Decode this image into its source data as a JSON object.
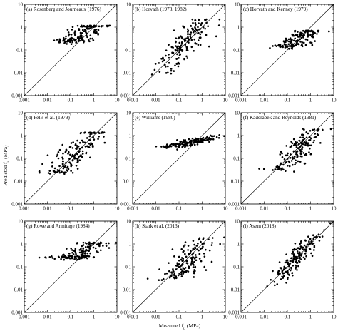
{
  "figure": {
    "ylabel": "Predicted f",
    "ylabel_sub": "u",
    "ylabel_unit": " (MPa)",
    "xlabel": "Measured f",
    "xlabel_sub": "u",
    "xlabel_unit": " (MPa)"
  },
  "chart_data": [
    {
      "type": "scatter",
      "title": "(a) Rosenberg and Journeaux (1976)",
      "x_ticks": [
        "0.001",
        "0.01",
        "0.1",
        "1",
        "10"
      ],
      "y_ticks": [
        "0.001",
        "0.01",
        "0.1",
        "1",
        "10"
      ],
      "xlim": [
        0.001,
        10
      ],
      "ylim": [
        0.001,
        10
      ],
      "log_x": true,
      "log_y": true,
      "reference_line": "1:1",
      "n_points": 150,
      "center_log": [
        -0.5,
        -0.35
      ],
      "spread": [
        0.55,
        0.28
      ],
      "slope": 0.55,
      "floor": -0.6,
      "cap": 0.02
    },
    {
      "type": "scatter",
      "title": "(b) Horvath (1978, 1982)",
      "x_ticks": [
        "0.001",
        "0.01",
        "0.1",
        "1",
        "10"
      ],
      "y_ticks": [
        "0.001",
        "0.01",
        "0.1",
        "1",
        "10"
      ],
      "xlim": [
        0.001,
        10
      ],
      "ylim": [
        0.001,
        10
      ],
      "log_x": true,
      "log_y": true,
      "reference_line": "1:1",
      "n_points": 160,
      "center_log": [
        -0.7,
        -0.65
      ],
      "spread": [
        0.6,
        0.4
      ],
      "slope": 0.9,
      "floor": -2.0,
      "cap": 0.3
    },
    {
      "type": "scatter",
      "title": "(c) Horvath and Kenney (1979)",
      "x_ticks": [
        "0.001",
        "0.01",
        "0.1",
        "1",
        "10"
      ],
      "y_ticks": [
        "0.001",
        "0.01",
        "0.1",
        "1",
        "10"
      ],
      "xlim": [
        0.001,
        10
      ],
      "ylim": [
        0.001,
        10
      ],
      "log_x": true,
      "log_y": true,
      "reference_line": "1:1",
      "n_points": 150,
      "center_log": [
        -0.45,
        -0.45
      ],
      "spread": [
        0.5,
        0.25
      ],
      "slope": 0.55,
      "floor": -0.85,
      "cap": -0.2
    },
    {
      "type": "scatter",
      "title": "(d) Pells et al. (1979)",
      "x_ticks": [
        "0.001",
        "0.01",
        "0.1",
        "1",
        "10"
      ],
      "y_ticks": [
        "0.001",
        "0.01",
        "0.1",
        "1",
        "10"
      ],
      "xlim": [
        0.001,
        10
      ],
      "ylim": [
        0.001,
        10
      ],
      "log_x": true,
      "log_y": true,
      "reference_line": "1:1",
      "n_points": 160,
      "center_log": [
        -0.75,
        -0.75
      ],
      "spread": [
        0.6,
        0.4
      ],
      "slope": 0.9,
      "floor": -1.6,
      "cap": 0.1
    },
    {
      "type": "scatter",
      "title": "(e) Williams (1980)",
      "x_ticks": [
        "0.001",
        "0.01",
        "0.1",
        "1",
        "10"
      ],
      "y_ticks": [
        "0.001",
        "0.01",
        "0.1",
        "1",
        "10"
      ],
      "xlim": [
        0.001,
        10
      ],
      "ylim": [
        0.001,
        10
      ],
      "log_x": true,
      "log_y": true,
      "reference_line": "1:1",
      "n_points": 160,
      "center_log": [
        -0.55,
        -0.3
      ],
      "spread": [
        0.6,
        0.08
      ],
      "slope": 0.2,
      "floor": -0.5,
      "cap": 0.0
    },
    {
      "type": "scatter",
      "title": "(f) Kaderabek and Reynolds (1981)",
      "x_ticks": [
        "0.001",
        "0.01",
        "0.1",
        "1",
        "10"
      ],
      "y_ticks": [
        "0.001",
        "0.01",
        "0.1",
        "1",
        "10"
      ],
      "xlim": [
        0.001,
        10
      ],
      "ylim": [
        0.001,
        10
      ],
      "log_x": true,
      "log_y": true,
      "reference_line": "1:1",
      "n_points": 160,
      "center_log": [
        -0.6,
        -0.7
      ],
      "spread": [
        0.5,
        0.35
      ],
      "slope": 0.8,
      "floor": -1.5,
      "cap": 0.25
    },
    {
      "type": "scatter",
      "title": "(g) Rowe and Armitage (1984)",
      "x_ticks": [
        "0.001",
        "0.01",
        "0.1",
        "1",
        "10"
      ],
      "y_ticks": [
        "0.001",
        "0.01",
        "0.1",
        "1",
        "10"
      ],
      "xlim": [
        0.001,
        10
      ],
      "ylim": [
        0.001,
        10
      ],
      "log_x": true,
      "log_y": true,
      "reference_line": "1:1",
      "n_points": 150,
      "center_log": [
        -0.5,
        -0.35
      ],
      "spread": [
        0.55,
        0.28
      ],
      "slope": 0.55,
      "floor": -0.6,
      "cap": 0.02
    },
    {
      "type": "scatter",
      "title": "(h) Stark et al. (2013)",
      "x_ticks": [
        "0.001",
        "0.01",
        "0.1",
        "1",
        "10"
      ],
      "y_ticks": [
        "0.001",
        "0.01",
        "0.1",
        "1",
        "10"
      ],
      "xlim": [
        0.001,
        10
      ],
      "ylim": [
        0.001,
        10
      ],
      "log_x": true,
      "log_y": true,
      "reference_line": "1:1",
      "n_points": 160,
      "center_log": [
        -0.6,
        -0.7
      ],
      "spread": [
        0.5,
        0.35
      ],
      "slope": 0.8,
      "floor": -1.5,
      "cap": 0.25
    },
    {
      "type": "scatter",
      "title": "(i) Asem (2018)",
      "x_ticks": [
        "0.001",
        "0.01",
        "0.1",
        "1",
        "10"
      ],
      "y_ticks": [
        "0.001",
        "0.01",
        "0.1",
        "1",
        "10"
      ],
      "xlim": [
        0.001,
        10
      ],
      "ylim": [
        0.001,
        10
      ],
      "log_x": true,
      "log_y": true,
      "reference_line": "1:1",
      "n_points": 170,
      "center_log": [
        -0.6,
        -0.6
      ],
      "spread": [
        0.55,
        0.25
      ],
      "slope": 0.95,
      "floor": -2.0,
      "cap": 0.9
    }
  ]
}
